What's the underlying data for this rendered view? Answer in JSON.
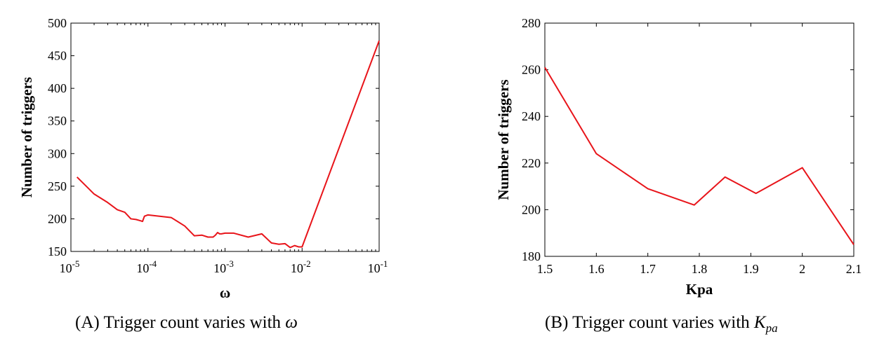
{
  "chart_data": [
    {
      "id": "A",
      "type": "line",
      "xscale": "log",
      "xlabel": "ω",
      "ylabel": "Number of triggers",
      "xlim": [
        1e-05,
        0.1
      ],
      "ylim": [
        150,
        500
      ],
      "xticks": [
        1e-05,
        0.0001,
        0.001,
        0.01,
        0.1
      ],
      "xtick_labels": [
        {
          "base": "10",
          "exp": "-5"
        },
        {
          "base": "10",
          "exp": "-4"
        },
        {
          "base": "10",
          "exp": "-3"
        },
        {
          "base": "10",
          "exp": "-2"
        },
        {
          "base": "10",
          "exp": "-1"
        }
      ],
      "yticks": [
        150,
        200,
        250,
        300,
        350,
        400,
        450,
        500
      ],
      "ytick_labels": [
        "150",
        "200",
        "250",
        "300",
        "350",
        "400",
        "450",
        "500"
      ],
      "grid": false,
      "color": "#e8141a",
      "series": [
        {
          "x": [
            1.2e-05,
            2e-05,
            3e-05,
            4e-05,
            5e-05,
            6e-05,
            7e-05,
            8e-05,
            8.5e-05,
            9e-05,
            0.0001,
            0.0002,
            0.0003,
            0.0004,
            0.0005,
            0.0006,
            0.0007,
            0.00075,
            0.0008,
            0.00085,
            0.0009,
            0.001,
            0.0013,
            0.002,
            0.003,
            0.004,
            0.005,
            0.006,
            0.007,
            0.008,
            0.009,
            0.01,
            0.1
          ],
          "y": [
            264,
            238,
            225,
            214,
            210,
            200,
            199,
            197,
            196,
            204,
            206,
            202,
            189,
            174,
            175,
            172,
            172,
            175,
            179,
            177,
            177,
            178,
            178,
            172,
            177,
            163,
            161,
            162,
            156,
            159,
            157,
            157,
            473
          ]
        }
      ],
      "caption": {
        "prefix": "(A)",
        "text": "Trigger count varies with ",
        "var": "ω",
        "sub": ""
      }
    },
    {
      "id": "B",
      "type": "line",
      "xscale": "linear",
      "xlabel": "Kpa",
      "ylabel": "Number of triggers",
      "xlim": [
        1.5,
        2.1
      ],
      "ylim": [
        180,
        280
      ],
      "xticks": [
        1.5,
        1.6,
        1.7,
        1.8,
        1.9,
        2.0,
        2.1
      ],
      "xtick_labels": [
        "1.5",
        "1.6",
        "1.7",
        "1.8",
        "1.9",
        "2",
        "2.1"
      ],
      "yticks": [
        180,
        200,
        220,
        240,
        260,
        280
      ],
      "ytick_labels": [
        "180",
        "200",
        "220",
        "240",
        "260",
        "280"
      ],
      "grid": false,
      "color": "#e8141a",
      "series": [
        {
          "x": [
            1.5,
            1.6,
            1.7,
            1.79,
            1.85,
            1.91,
            2.0,
            2.1
          ],
          "y": [
            261,
            224,
            209,
            202,
            214,
            207,
            218,
            185
          ]
        }
      ],
      "caption": {
        "prefix": "(B)",
        "text": "Trigger count varies with ",
        "var": "K",
        "sub": "pa"
      }
    }
  ]
}
